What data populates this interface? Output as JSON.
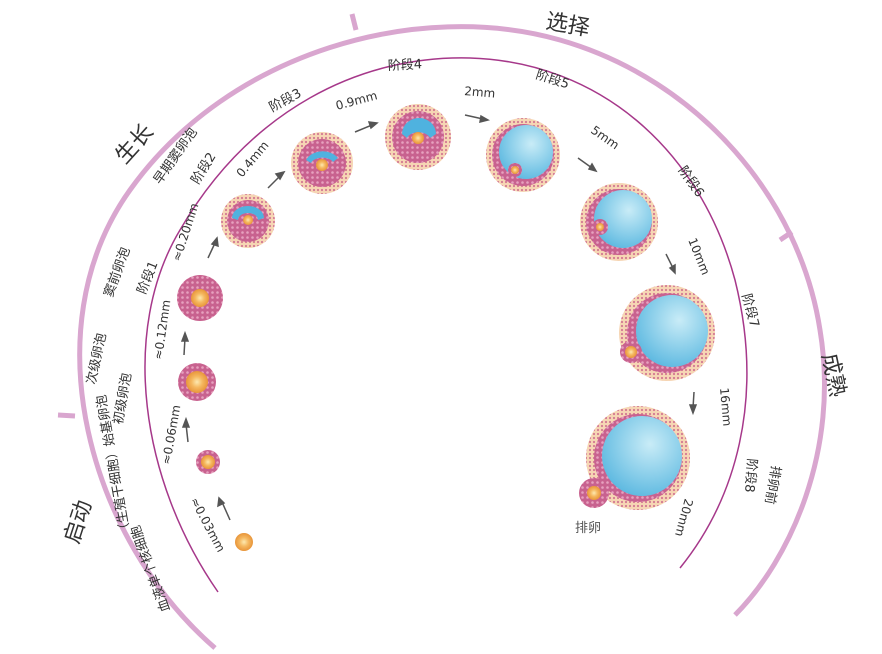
{
  "phases": [
    "启动",
    "生长",
    "选择",
    "成熟"
  ],
  "follicle_types": [
    "血液单个核细胞",
    "（生殖干细胞）始基卵泡",
    "初级卵泡",
    "次级卵泡",
    "窦前卵泡",
    "早期窦卵泡",
    "排卵前"
  ],
  "stages": [
    "阶段1",
    "阶段2",
    "阶段3",
    "阶段4",
    "阶段5",
    "阶段6",
    "阶段7",
    "阶段8"
  ],
  "sizes": [
    "≈0.03mm",
    "≈0.06mm",
    "≈0.12mm",
    "≈0.20mm",
    "0.4mm",
    "0.9mm",
    "2mm",
    "5mm",
    "10mm",
    "16mm",
    "20mm"
  ],
  "ovulation_label": "排卵",
  "colors": {
    "outer_arc": "#d9a6cf",
    "inner_arc": "#a6388a",
    "fluid": "#6cc3e6",
    "granulosa": "#c55a87",
    "theca": "#f2c79b",
    "oocyte": "#f1a742"
  }
}
